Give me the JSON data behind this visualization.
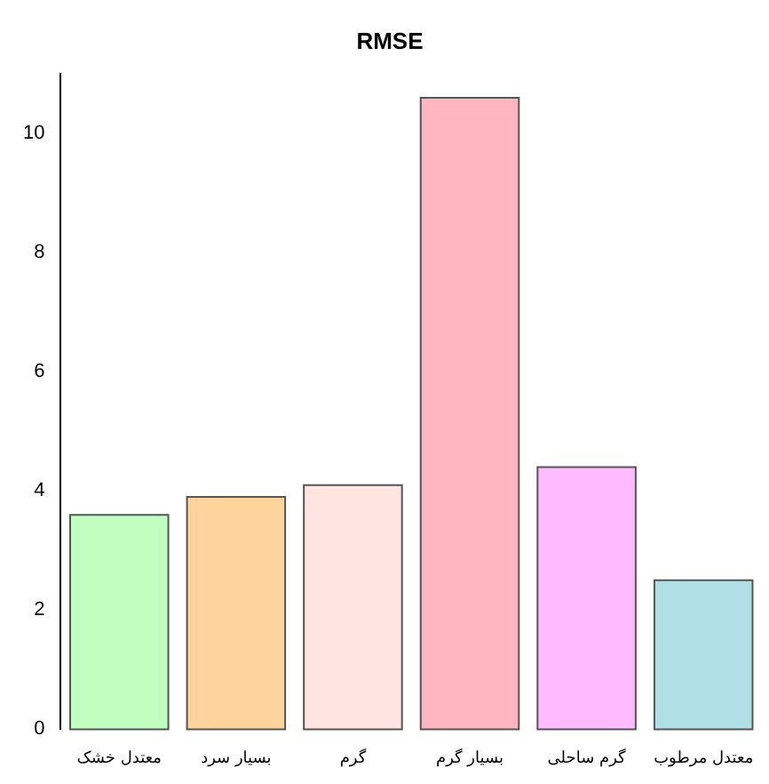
{
  "chart_data": {
    "type": "bar",
    "title": "RMSE",
    "categories": [
      "معتدل خشک",
      "بسیار سرد",
      "گرم",
      "بسیار گرم",
      "گرم ساحلی",
      "معتدل مرطوب"
    ],
    "values": [
      3.6,
      3.9,
      4.1,
      10.6,
      4.4,
      2.5
    ],
    "colors": [
      "#c1ffc1",
      "#ffd39b",
      "#ffe4e1",
      "#ffb6c1",
      "#ffbbff",
      "#b0e0e6"
    ],
    "ylim": [
      0,
      11
    ],
    "yticks": [
      0,
      2,
      4,
      6,
      8,
      10
    ],
    "grid": false,
    "legend": false
  }
}
